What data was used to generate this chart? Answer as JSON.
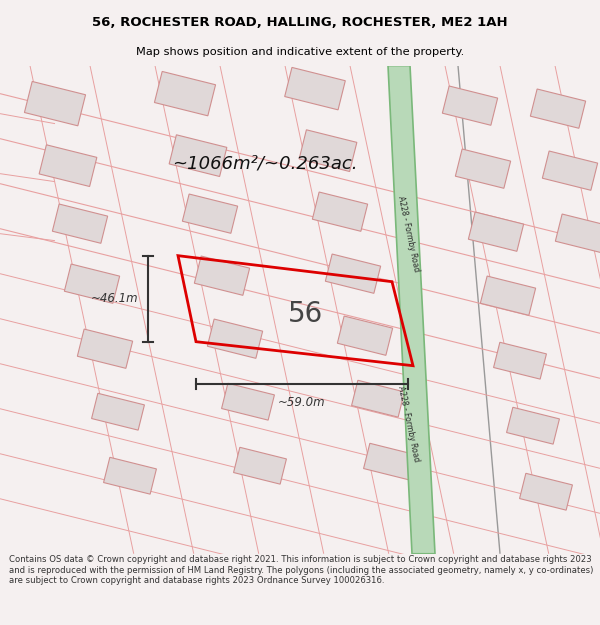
{
  "title_line1": "56, ROCHESTER ROAD, HALLING, ROCHESTER, ME2 1AH",
  "title_line2": "Map shows position and indicative extent of the property.",
  "footer_text": "Contains OS data © Crown copyright and database right 2021. This information is subject to Crown copyright and database rights 2023 and is reproduced with the permission of HM Land Registry. The polygons (including the associated geometry, namely x, y co-ordinates) are subject to Crown copyright and database rights 2023 Ordnance Survey 100026316.",
  "area_label": "~1066m²/~0.263ac.",
  "property_number": "56",
  "dim_width": "~59.0m",
  "dim_height": "~46.1m",
  "road_label": "A228 - Formby Road",
  "bg_color": "#f5f0f0",
  "map_bg": "#ffffff",
  "road_green_fill": "#b8d9b8",
  "road_green_edge": "#7ab87a",
  "property_outline_color": "#dd0000",
  "dim_color": "#333333",
  "title_color": "#000000",
  "footer_color": "#333333",
  "pink_line": "#e8a0a0",
  "building_fill": "#e0d8d8",
  "building_edge": "#d09090"
}
